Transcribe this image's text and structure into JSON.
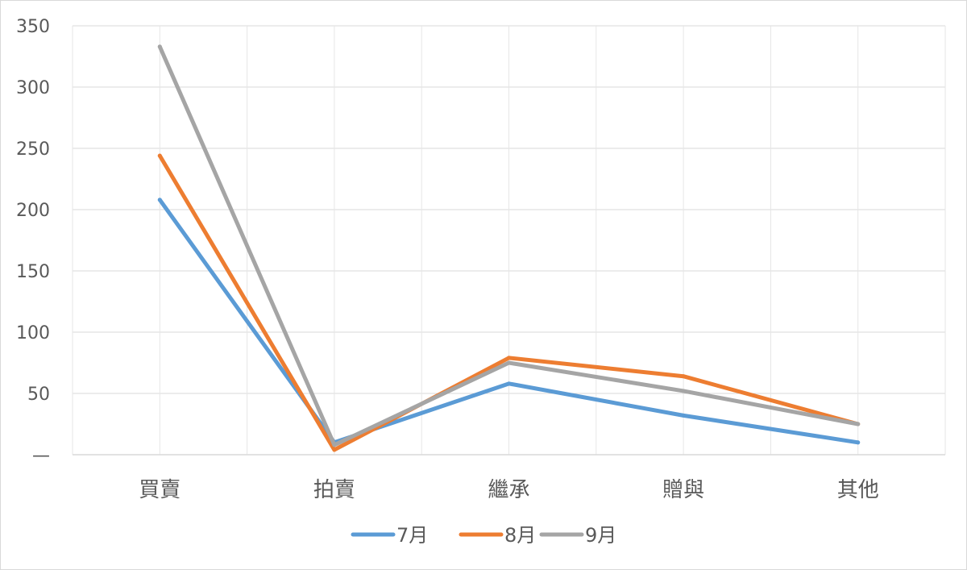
{
  "chart_data": {
    "type": "line",
    "categories": [
      "買賣",
      "拍賣",
      "繼承",
      "贈與",
      "其他"
    ],
    "series": [
      {
        "name": "7月",
        "color": "#5b9bd5",
        "values": [
          208,
          10,
          58,
          32,
          10
        ]
      },
      {
        "name": "8月",
        "color": "#ed7d31",
        "values": [
          244,
          4,
          79,
          64,
          25
        ]
      },
      {
        "name": "9月",
        "color": "#a5a5a5",
        "values": [
          333,
          8,
          75,
          52,
          25
        ]
      }
    ],
    "y_ticks": [
      "—",
      "50",
      "100",
      "150",
      "200",
      "250",
      "300",
      "350"
    ],
    "ylim": [
      0,
      350
    ],
    "grid": true,
    "legend_position": "bottom"
  }
}
